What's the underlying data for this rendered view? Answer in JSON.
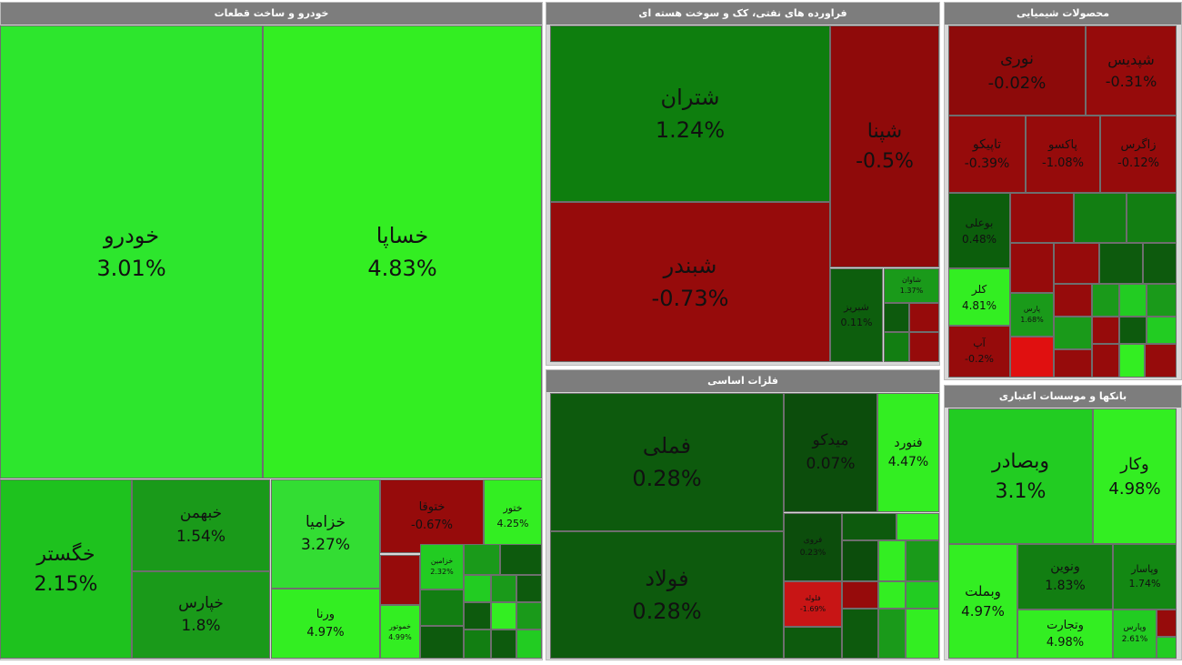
{
  "sectors": [
    {
      "title": "خودرو و ساخت قطعات",
      "tiles": [
        {
          "name": "خودرو",
          "change": "3.01%"
        },
        {
          "name": "خساپا",
          "change": "4.83%"
        },
        {
          "name": "خگستر",
          "change": "2.15%"
        },
        {
          "name": "خبهمن",
          "change": "1.54%"
        },
        {
          "name": "خپارس",
          "change": "1.8%"
        },
        {
          "name": "خزامیا",
          "change": "3.27%"
        },
        {
          "name": "ورنا",
          "change": "4.97%"
        },
        {
          "name": "ختوقا",
          "change": "-0.67%"
        },
        {
          "name": "ختور",
          "change": "4.25%"
        },
        {
          "name": "خزامین",
          "change": "2.32%"
        },
        {
          "name": "خموتور",
          "change": "4.99%"
        }
      ]
    },
    {
      "title": "فراورده های نفتی، کک و سوخت هسته ای",
      "tiles": [
        {
          "name": "شتران",
          "change": "1.24%"
        },
        {
          "name": "شپنا",
          "change": "-0.5%"
        },
        {
          "name": "شبندر",
          "change": "-0.73%"
        },
        {
          "name": "شبریز",
          "change": "0.11%"
        },
        {
          "name": "شاوان",
          "change": "1.37%"
        }
      ]
    },
    {
      "title": "فلزات اساسی",
      "tiles": [
        {
          "name": "فملی",
          "change": "0.28%"
        },
        {
          "name": "فولاد",
          "change": "0.28%"
        },
        {
          "name": "میدکو",
          "change": "0.07%"
        },
        {
          "name": "فنورد",
          "change": "4.47%"
        },
        {
          "name": "فروی",
          "change": "0.23%"
        },
        {
          "name": "فلوله",
          "change": "-1.69%"
        }
      ]
    },
    {
      "title": "محصولات شیمیایی",
      "tiles": [
        {
          "name": "نوری",
          "change": "-0.02%"
        },
        {
          "name": "شپدیس",
          "change": "-0.31%"
        },
        {
          "name": "تاپیکو",
          "change": "-0.39%"
        },
        {
          "name": "پاکسو",
          "change": "-1.08%"
        },
        {
          "name": "زاگرس",
          "change": "-0.12%"
        },
        {
          "name": "بوعلی",
          "change": "0.48%"
        },
        {
          "name": "کلر",
          "change": "4.81%"
        },
        {
          "name": "آپ",
          "change": "-0.2%"
        },
        {
          "name": "پارس",
          "change": "1.68%"
        }
      ]
    },
    {
      "title": "بانکها و موسسات اعتباری",
      "tiles": [
        {
          "name": "وبصادر",
          "change": "3.1%"
        },
        {
          "name": "وکار",
          "change": "4.98%"
        },
        {
          "name": "وبملت",
          "change": "4.97%"
        },
        {
          "name": "ونوین",
          "change": "1.83%"
        },
        {
          "name": "وتجارت",
          "change": "4.98%"
        },
        {
          "name": "وپاسار",
          "change": "1.74%"
        },
        {
          "name": "وپارس",
          "change": "2.61%"
        }
      ]
    }
  ]
}
